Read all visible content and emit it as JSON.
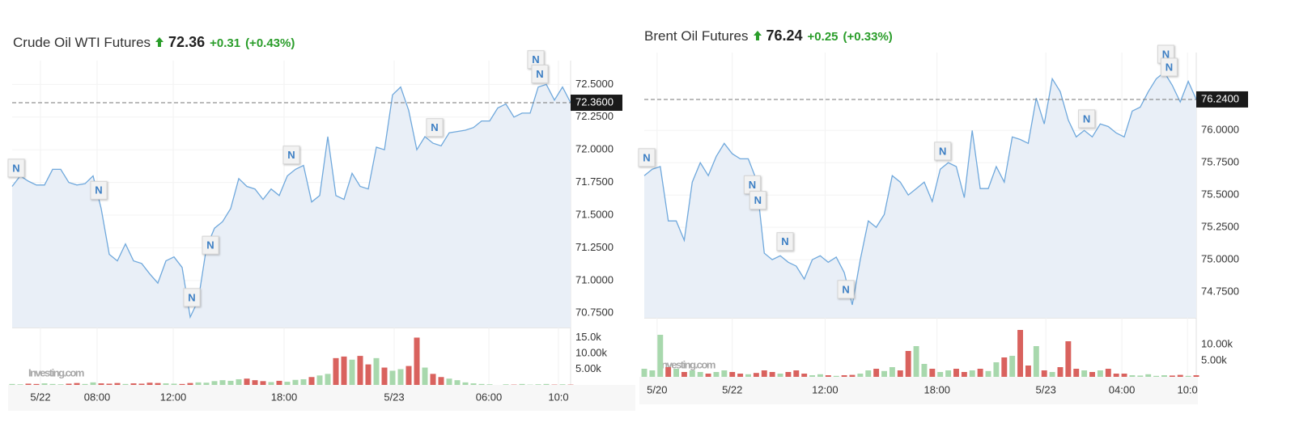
{
  "chart_data": [
    {
      "type": "line",
      "title": "Crude Oil WTI Futures",
      "price": 72.36,
      "change": "+0.31",
      "change_pct": "(+0.43%)",
      "watermark": "Investing.com",
      "color": "#6fa8dc",
      "area_color": "#e9eff7",
      "xlim": [
        0,
        69
      ],
      "xticks": [
        {
          "value": 3.5,
          "label": "5/22"
        },
        {
          "value": 10.5,
          "label": "08:00"
        },
        {
          "value": 19.9,
          "label": "12:00"
        },
        {
          "value": 33.6,
          "label": "18:00"
        },
        {
          "value": 47.2,
          "label": "5/23"
        },
        {
          "value": 58.9,
          "label": "06:00"
        },
        {
          "value": 67.5,
          "label": "10:0"
        }
      ],
      "ylim": [
        70.64,
        72.62
      ],
      "yticks": [
        {
          "value": 72.5,
          "label": "72.5000"
        },
        {
          "value": 72.25,
          "label": "72.2500"
        },
        {
          "value": 72,
          "label": "72.0000"
        },
        {
          "value": 71.75,
          "label": "71.7500"
        },
        {
          "value": 71.5,
          "label": "71.5000"
        },
        {
          "value": 71.25,
          "label": "71.2500"
        },
        {
          "value": 71,
          "label": "71.0000"
        },
        {
          "value": 70.75,
          "label": "70.7500"
        }
      ],
      "last": {
        "value": 72.36,
        "label": "72.3600"
      },
      "values": [
        71.72,
        71.8,
        71.76,
        71.73,
        71.73,
        71.85,
        71.85,
        71.75,
        71.73,
        71.74,
        71.8,
        71.55,
        71.2,
        71.15,
        71.28,
        71.15,
        71.13,
        71.05,
        70.98,
        71.15,
        71.18,
        71.1,
        70.72,
        70.85,
        71.25,
        71.4,
        71.45,
        71.55,
        71.78,
        71.72,
        71.7,
        71.62,
        71.7,
        71.65,
        71.8,
        71.85,
        71.88,
        71.6,
        71.65,
        72.1,
        71.65,
        71.62,
        71.82,
        71.72,
        71.7,
        72.02,
        72.0,
        72.42,
        72.48,
        72.3,
        72.0,
        72.1,
        72.05,
        72.03,
        72.13,
        72.14,
        72.15,
        72.17,
        72.22,
        72.22,
        72.32,
        72.35,
        72.25,
        72.28,
        72.28,
        72.48,
        72.5,
        72.38,
        72.48,
        72.36
      ],
      "news": [
        {
          "x": 0.5,
          "y": 71.86,
          "label": "N"
        },
        {
          "x": 10.7,
          "y": 71.69,
          "label": "N"
        },
        {
          "x": 22.2,
          "y": 70.87,
          "label": "N"
        },
        {
          "x": 24.5,
          "y": 71.27,
          "label": "N"
        },
        {
          "x": 34.5,
          "y": 71.96,
          "label": "N"
        },
        {
          "x": 52.2,
          "y": 72.17,
          "label": "N"
        },
        {
          "x": 64.7,
          "y": 72.69,
          "label": "N"
        },
        {
          "x": 65.2,
          "y": 72.58,
          "label": "N"
        }
      ],
      "volume": {
        "up_color": "#a8d8ad",
        "down_color": "#d9625e",
        "ylim": [
          0,
          18200
        ],
        "yticks": [
          {
            "value": 15000,
            "label": "15.0k"
          },
          {
            "value": 10000,
            "label": "10.00k"
          },
          {
            "value": 5000,
            "label": "5.00k"
          }
        ],
        "values": [
          300,
          200,
          400,
          300,
          500,
          300,
          200,
          400,
          600,
          300,
          800,
          500,
          400,
          600,
          300,
          500,
          400,
          700,
          600,
          500,
          400,
          300,
          600,
          800,
          700,
          1200,
          1500,
          1300,
          1800,
          2000,
          1500,
          1200,
          900,
          1300,
          1000,
          1600,
          1800,
          2500,
          3000,
          3500,
          8500,
          9000,
          8000,
          9200,
          6500,
          8500,
          5500,
          4500,
          5000,
          6000,
          15000,
          5500,
          3500,
          2500,
          2000,
          1500,
          800,
          500,
          300,
          200,
          0,
          200,
          100,
          300,
          100,
          200,
          300,
          100,
          200,
          100
        ]
      }
    },
    {
      "type": "line",
      "title": "Brent Oil Futures",
      "price": 76.24,
      "change": "+0.25",
      "change_pct": "(+0.33%)",
      "watermark": "Investing.com",
      "color": "#6fa8dc",
      "area_color": "#e9eff7",
      "xlim": [
        0,
        69
      ],
      "xticks": [
        {
          "value": 1.6,
          "label": "5/20"
        },
        {
          "value": 11.0,
          "label": "5/22"
        },
        {
          "value": 22.6,
          "label": "12:00"
        },
        {
          "value": 36.6,
          "label": "18:00"
        },
        {
          "value": 50.2,
          "label": "5/23"
        },
        {
          "value": 59.7,
          "label": "04:00"
        },
        {
          "value": 67.9,
          "label": "10:0"
        }
      ],
      "ylim": [
        74.55,
        76.54
      ],
      "yticks": [
        {
          "value": 76,
          "label": "76.0000"
        },
        {
          "value": 75.75,
          "label": "75.7500"
        },
        {
          "value": 75.5,
          "label": "75.5000"
        },
        {
          "value": 75.25,
          "label": "75.2500"
        },
        {
          "value": 75,
          "label": "75.0000"
        },
        {
          "value": 74.75,
          "label": "74.7500"
        }
      ],
      "last": {
        "value": 76.24,
        "label": "76.2400"
      },
      "values": [
        75.65,
        75.7,
        75.72,
        75.3,
        75.3,
        75.15,
        75.6,
        75.75,
        75.65,
        75.8,
        75.9,
        75.82,
        75.78,
        75.78,
        75.62,
        75.05,
        75.0,
        75.03,
        74.98,
        74.95,
        74.85,
        75.0,
        75.03,
        74.98,
        75.02,
        74.9,
        74.65,
        75.0,
        75.3,
        75.25,
        75.35,
        75.65,
        75.6,
        75.5,
        75.55,
        75.6,
        75.45,
        75.7,
        75.75,
        75.72,
        75.48,
        76.0,
        75.55,
        75.55,
        75.72,
        75.6,
        75.95,
        75.93,
        75.9,
        76.25,
        76.05,
        76.4,
        76.3,
        76.08,
        75.95,
        76.0,
        75.95,
        76.05,
        76.03,
        75.98,
        75.95,
        76.15,
        76.18,
        76.3,
        76.4,
        76.45,
        76.35,
        76.22,
        76.38,
        76.24
      ],
      "news": [
        {
          "x": 0.3,
          "y": 75.79,
          "label": "N"
        },
        {
          "x": 13.5,
          "y": 75.58,
          "label": "N"
        },
        {
          "x": 14.2,
          "y": 75.46,
          "label": "N"
        },
        {
          "x": 17.6,
          "y": 75.14,
          "label": "N"
        },
        {
          "x": 25.2,
          "y": 74.77,
          "label": "N"
        },
        {
          "x": 37.3,
          "y": 75.84,
          "label": "N"
        },
        {
          "x": 55.3,
          "y": 76.09,
          "label": "N"
        },
        {
          "x": 65.2,
          "y": 76.59,
          "label": "N"
        },
        {
          "x": 65.6,
          "y": 76.49,
          "label": "N"
        }
      ],
      "volume": {
        "up_color": "#a8d8ad",
        "down_color": "#d9625e",
        "ylim": [
          0,
          18250
        ],
        "yticks": [
          {
            "value": 10000,
            "label": "10.00k"
          },
          {
            "value": 5000,
            "label": "5.00k"
          }
        ],
        "values": [
          2500,
          2000,
          13000,
          3000,
          2500,
          1500,
          2000,
          1500,
          1000,
          1500,
          2000,
          1500,
          1000,
          800,
          1200,
          2000,
          1500,
          1000,
          1500,
          2000,
          1000,
          500,
          800,
          500,
          300,
          500,
          600,
          1000,
          2000,
          2500,
          1800,
          3000,
          2000,
          8000,
          9500,
          4000,
          2500,
          1500,
          2000,
          2500,
          1500,
          2000,
          2500,
          1800,
          4500,
          6000,
          6500,
          14500,
          3500,
          9500,
          2000,
          1500,
          3000,
          11000,
          2500,
          2000,
          1500,
          2000,
          2500,
          1000,
          1000,
          500,
          400,
          800,
          300,
          500,
          400,
          600,
          300,
          500
        ]
      }
    }
  ]
}
